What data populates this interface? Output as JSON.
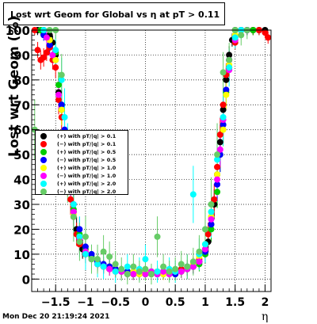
{
  "title": "Lost wrt Geom for Global vs   η at pT > 0.11",
  "footer": "Mon Dec 20 21:19:24 2021",
  "chart_data": {
    "type": "scatter",
    "xlabel": "η",
    "ylabel": "Lost wrt Geom (%)",
    "xlim": [
      -1.9,
      2.1
    ],
    "ylim": [
      -5,
      100
    ],
    "xticks": [
      -1.5,
      -1,
      -0.5,
      0,
      0.5,
      1,
      1.5,
      2
    ],
    "xtick_labels": [
      "−1.5",
      "−1",
      "−0.5",
      "0",
      "0.5",
      "1",
      "1.5",
      "2"
    ],
    "yticks": [
      0,
      10,
      20,
      30,
      40,
      50,
      60,
      70,
      80,
      90,
      100
    ],
    "grid": true,
    "legend_position": "left-middle",
    "series": [
      {
        "name": "(+) with pT/|q| > 0.1",
        "color": "#000000",
        "x": [
          -1.8,
          -1.7,
          -1.6,
          -1.55,
          -1.5,
          -1.45,
          -1.4,
          -1.35,
          -1.3,
          -1.25,
          -1.2,
          -1.15,
          -1.1,
          -1.05,
          -1.0,
          -0.9,
          -0.8,
          -0.7,
          -0.6,
          -0.5,
          -0.4,
          -0.3,
          -0.2,
          -0.1,
          0.0,
          0.1,
          0.2,
          0.3,
          0.4,
          0.5,
          0.6,
          0.7,
          0.8,
          0.9,
          1.0,
          1.05,
          1.1,
          1.15,
          1.2,
          1.25,
          1.3,
          1.35,
          1.4,
          1.45,
          1.5,
          1.6,
          1.7,
          1.8,
          1.9,
          2.0
        ],
        "y": [
          100,
          100,
          98,
          95,
          90,
          75,
          68,
          55,
          45,
          35,
          27,
          20,
          15,
          12,
          10,
          8,
          6,
          5,
          5,
          4,
          3,
          3,
          2,
          3,
          2,
          3,
          2,
          3,
          3,
          2,
          3,
          4,
          5,
          7,
          10,
          15,
          22,
          30,
          42,
          55,
          68,
          80,
          90,
          96,
          100,
          100,
          100,
          100,
          100,
          100
        ]
      },
      {
        "name": "(−) with pT/|q| > 0.1",
        "color": "#ff0000",
        "x": [
          -1.85,
          -1.8,
          -1.75,
          -1.7,
          -1.65,
          -1.6,
          -1.55,
          -1.5,
          -1.45,
          -1.4,
          -1.35,
          -1.3,
          -1.25,
          -1.2,
          -1.15,
          -1.1,
          -1.0,
          -0.9,
          -0.8,
          -0.7,
          -0.6,
          -0.5,
          -0.4,
          -0.3,
          -0.2,
          -0.1,
          0.0,
          0.1,
          0.2,
          0.3,
          0.4,
          0.5,
          0.6,
          0.7,
          0.8,
          0.9,
          1.0,
          1.05,
          1.1,
          1.15,
          1.2,
          1.25,
          1.3,
          1.35,
          1.4,
          1.5,
          1.6,
          1.7,
          1.8,
          1.9,
          2.0,
          2.05
        ],
        "y": [
          100,
          92,
          88,
          89,
          91,
          93,
          88,
          85,
          72,
          65,
          52,
          40,
          32,
          25,
          18,
          14,
          10,
          8,
          7,
          5,
          4,
          4,
          3,
          2,
          2,
          3,
          3,
          2,
          3,
          2,
          3,
          3,
          4,
          5,
          6,
          8,
          12,
          18,
          25,
          32,
          45,
          58,
          70,
          82,
          88,
          95,
          100,
          100,
          100,
          100,
          99,
          97
        ]
      },
      {
        "name": "(+) with pT/|q| > 0.5",
        "color": "#00cc00",
        "x": [
          -1.75,
          -1.6,
          -1.5,
          -1.45,
          -1.4,
          -1.35,
          -1.3,
          -1.25,
          -1.2,
          -1.1,
          -1.0,
          -0.9,
          -0.8,
          -0.7,
          -0.6,
          -0.5,
          -0.4,
          -0.3,
          -0.2,
          -0.1,
          0.0,
          0.1,
          0.2,
          0.3,
          0.4,
          0.5,
          0.6,
          0.7,
          0.8,
          0.9,
          1.0,
          1.1,
          1.2,
          1.25,
          1.3,
          1.35,
          1.4,
          1.5,
          1.6,
          1.8
        ],
        "y": [
          100,
          96,
          91,
          78,
          70,
          58,
          48,
          38,
          28,
          18,
          12,
          9,
          7,
          5,
          4,
          4,
          3,
          3,
          2,
          3,
          2,
          3,
          2,
          3,
          2,
          3,
          3,
          4,
          5,
          6,
          10,
          20,
          35,
          50,
          62,
          75,
          85,
          96,
          100,
          100
        ]
      },
      {
        "name": "(−) with pT/|q| > 0.5",
        "color": "#0000ff",
        "x": [
          -1.7,
          -1.6,
          -1.5,
          -1.4,
          -1.35,
          -1.3,
          -1.25,
          -1.2,
          -1.1,
          -1.0,
          -0.9,
          -0.8,
          -0.7,
          -0.6,
          -0.5,
          -0.4,
          -0.3,
          -0.2,
          -0.1,
          0.0,
          0.1,
          0.2,
          0.3,
          0.4,
          0.5,
          0.6,
          0.7,
          0.8,
          0.9,
          1.0,
          1.1,
          1.2,
          1.25,
          1.3,
          1.35,
          1.4,
          1.5,
          1.6,
          1.7
        ],
        "y": [
          98,
          94,
          88,
          70,
          60,
          50,
          40,
          30,
          20,
          13,
          10,
          7,
          6,
          5,
          4,
          3,
          3,
          3,
          2,
          3,
          2,
          2,
          3,
          3,
          2,
          3,
          4,
          5,
          7,
          11,
          22,
          38,
          50,
          62,
          76,
          88,
          97,
          100,
          100
        ]
      },
      {
        "name": "(+) with pT/|q| > 1.0",
        "color": "#ffff00",
        "x": [
          -1.6,
          -1.5,
          -1.4,
          -1.3,
          -1.25,
          -1.2,
          -1.1,
          -1.0,
          -0.9,
          -0.8,
          -0.7,
          -0.6,
          -0.5,
          -0.4,
          -0.3,
          -0.2,
          -0.1,
          0.0,
          0.1,
          0.2,
          0.3,
          0.4,
          0.5,
          0.6,
          0.7,
          0.8,
          0.9,
          1.0,
          1.1,
          1.2,
          1.3,
          1.35,
          1.4,
          1.5
        ],
        "y": [
          96,
          88,
          68,
          46,
          36,
          26,
          17,
          11,
          8,
          6,
          5,
          4,
          3,
          3,
          2,
          3,
          2,
          3,
          2,
          3,
          2,
          2,
          3,
          3,
          4,
          6,
          9,
          14,
          25,
          42,
          60,
          74,
          86,
          98
        ]
      },
      {
        "name": "(−) with pT/|q| > 1.0",
        "color": "#ff00ff",
        "x": [
          -1.65,
          -1.55,
          -1.45,
          -1.35,
          -1.3,
          -1.25,
          -1.2,
          -1.1,
          -1.0,
          -0.9,
          -0.8,
          -0.7,
          -0.6,
          -0.5,
          -0.4,
          -0.3,
          -0.2,
          -0.1,
          0.0,
          0.1,
          0.2,
          0.3,
          0.4,
          0.5,
          0.6,
          0.7,
          0.8,
          0.9,
          1.0,
          1.1,
          1.2,
          1.25,
          1.3,
          1.4,
          1.5
        ],
        "y": [
          97,
          90,
          74,
          56,
          46,
          37,
          27,
          16,
          11,
          8,
          6,
          5,
          4,
          3,
          3,
          2,
          2,
          3,
          2,
          3,
          2,
          3,
          2,
          3,
          3,
          4,
          5,
          7,
          12,
          24,
          40,
          52,
          64,
          84,
          96
        ]
      },
      {
        "name": "(+) with pT/|q| > 2.0",
        "color": "#00ffff",
        "x": [
          -1.7,
          -1.5,
          -1.4,
          -1.35,
          -1.3,
          -1.2,
          -1.1,
          -1.0,
          -0.9,
          -0.8,
          -0.7,
          -0.5,
          -0.3,
          -0.1,
          0.0,
          0.2,
          0.4,
          0.5,
          0.7,
          0.8,
          0.9,
          1.0,
          1.1,
          1.2,
          1.3,
          1.4,
          1.5,
          1.6
        ],
        "y": [
          100,
          92,
          80,
          65,
          50,
          30,
          17,
          10,
          8,
          6,
          5,
          3,
          5,
          4,
          8,
          3,
          4,
          3,
          5,
          34,
          10,
          14,
          27,
          48,
          65,
          85,
          97,
          100
        ]
      },
      {
        "name": "(−) with pT/|q| > 2.0",
        "color": "#66cc66",
        "x": [
          -1.85,
          -1.6,
          -1.5,
          -1.4,
          -1.3,
          -1.2,
          -1.1,
          -1.0,
          -0.9,
          -0.8,
          -0.7,
          -0.6,
          -0.5,
          -0.4,
          -0.3,
          -0.2,
          -0.1,
          0.0,
          0.1,
          0.2,
          0.3,
          0.4,
          0.5,
          0.6,
          0.7,
          0.8,
          0.9,
          1.0,
          1.1,
          1.2,
          1.3,
          1.4,
          1.5,
          1.6,
          1.7
        ],
        "y": [
          60,
          100,
          100,
          82,
          43,
          25,
          15,
          17,
          8,
          8,
          11,
          9,
          6,
          4,
          2,
          5,
          3,
          4,
          2,
          17,
          5,
          3,
          4,
          6,
          5,
          7,
          11,
          20,
          30,
          50,
          83,
          88,
          100,
          98,
          100
        ]
      }
    ]
  }
}
